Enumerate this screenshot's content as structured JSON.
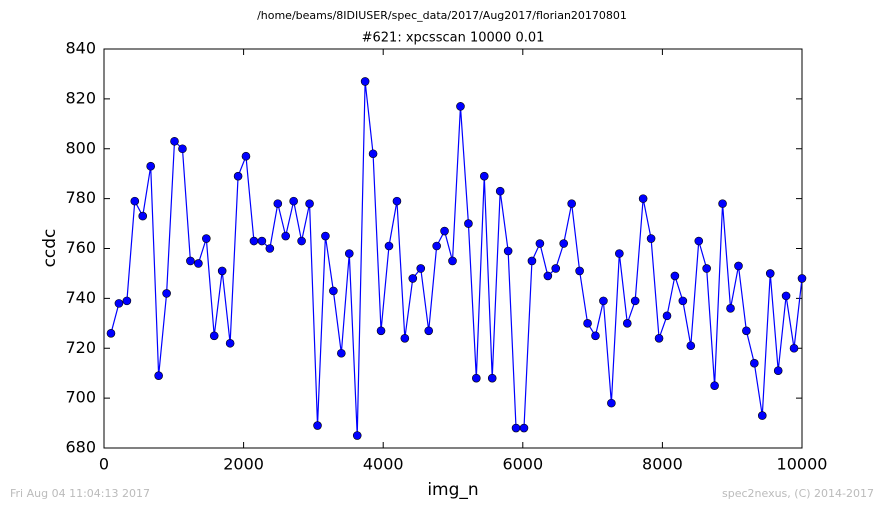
{
  "chart_data": {
    "type": "line",
    "suptitle": "/home/beams/8IDIUSER/spec_data/2017/Aug2017/florian20170801",
    "title": "#621: xpcsscan 10000 0.01",
    "x_label": "img_n",
    "y_label": "ccdc",
    "footer_left": "Fri Aug 04 11:04:13 2017",
    "footer_right": "spec2nexus, (C) 2014-2017",
    "marker": "o",
    "x": [
      100,
      214,
      328,
      441,
      555,
      669,
      783,
      897,
      1010,
      1124,
      1238,
      1352,
      1466,
      1579,
      1693,
      1807,
      1921,
      2034,
      2148,
      2262,
      2376,
      2490,
      2603,
      2717,
      2831,
      2945,
      3059,
      3172,
      3286,
      3400,
      3514,
      3628,
      3741,
      3855,
      3969,
      4083,
      4197,
      4310,
      4424,
      4538,
      4652,
      4766,
      4879,
      4993,
      5107,
      5221,
      5334,
      5448,
      5562,
      5676,
      5790,
      5903,
      6017,
      6131,
      6245,
      6359,
      6472,
      6586,
      6700,
      6814,
      6928,
      7041,
      7155,
      7269,
      7383,
      7497,
      7610,
      7724,
      7838,
      7952,
      8066,
      8179,
      8293,
      8407,
      8521,
      8634,
      8748,
      8862,
      8976,
      9090,
      9203,
      9317,
      9431,
      9545,
      9659,
      9772,
      9886,
      10000
    ],
    "series": [
      {
        "color": "#0000ff",
        "values": [
          726,
          738,
          739,
          779,
          773,
          793,
          709,
          742,
          803,
          800,
          755,
          754,
          764,
          725,
          751,
          722,
          789,
          797,
          763,
          763,
          760,
          778,
          765,
          779,
          763,
          778,
          689,
          765,
          743,
          718,
          758,
          685,
          827,
          798,
          727,
          761,
          779,
          724,
          748,
          752,
          727,
          761,
          767,
          755,
          817,
          770,
          708,
          789,
          708,
          783,
          759,
          688,
          688,
          755,
          762,
          749,
          752,
          762,
          778,
          751,
          730,
          725,
          739,
          698,
          758,
          730,
          739,
          780,
          764,
          724,
          733,
          749,
          739,
          721,
          763,
          752,
          705,
          778,
          736,
          753,
          727,
          714,
          693,
          750,
          711,
          741,
          720,
          748
        ]
      }
    ],
    "xlim": [
      0,
      10000
    ],
    "xticks": [
      0,
      2000,
      4000,
      6000,
      8000,
      10000
    ],
    "ylim": [
      680,
      840
    ],
    "yticks": [
      680,
      700,
      720,
      740,
      760,
      780,
      800,
      820,
      840
    ]
  }
}
